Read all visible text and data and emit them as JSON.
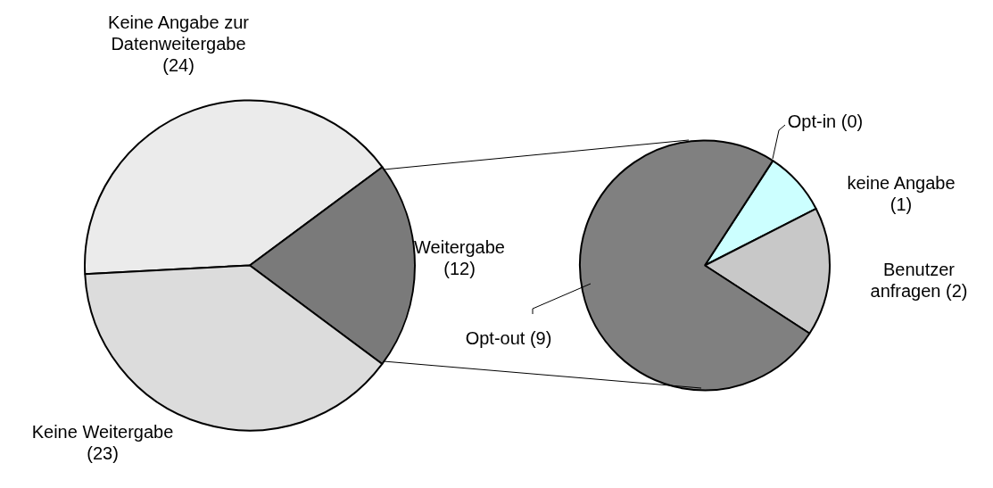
{
  "chart_data": [
    {
      "type": "pie",
      "categories": [
        "Keine Angabe zur Datenweitergabe",
        "Weitergabe",
        "Keine Weitergabe"
      ],
      "values": [
        24,
        12,
        23
      ],
      "value_labels": [
        "(24)",
        "(12)",
        "(23)"
      ],
      "colors": [
        "#ebebeb",
        "#7a7a7a",
        "#dcdcdc"
      ],
      "legend": false
    },
    {
      "type": "pie",
      "categories": [
        "Opt-in",
        "keine Angabe",
        "Benutzer anfragen",
        "Opt-out"
      ],
      "values": [
        0,
        1,
        2,
        9
      ],
      "value_labels": [
        "(0)",
        "(1)",
        "(2)",
        "(9)"
      ],
      "colors": [
        "#ffffff",
        "#ccffff",
        "#c8c8c8",
        "#808080"
      ],
      "legend": false
    }
  ]
}
